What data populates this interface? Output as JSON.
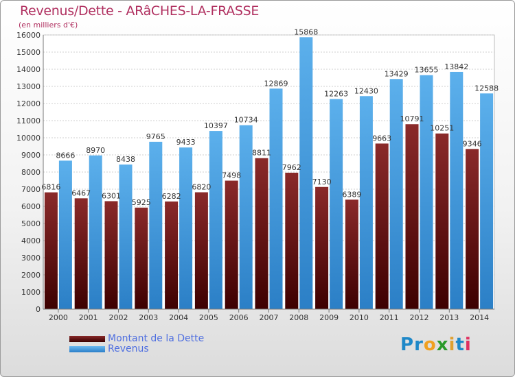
{
  "colors": {
    "dette": "#7a2222",
    "revenus": "#4fa3e6",
    "title": "#b03060",
    "legend_text": "#4f6fe0"
  },
  "logo": {
    "text": "Proxiti",
    "letters": [
      "P",
      "r",
      "o",
      "x",
      "i",
      "t",
      "i"
    ],
    "colors": [
      "#1e88c8",
      "#1e88c8",
      "#f0a020",
      "#2a9a2a",
      "#e0a030",
      "#1e88c8",
      "#e03060"
    ]
  },
  "chart_data": {
    "type": "bar",
    "title": "Revenus/Dette - ARâCHES-LA-FRASSE",
    "subtitle": "(en milliers d'€)",
    "xlabel": "",
    "ylabel": "",
    "ylim": [
      0,
      16000
    ],
    "yticks": [
      0,
      1000,
      2000,
      3000,
      4000,
      5000,
      6000,
      7000,
      8000,
      9000,
      10000,
      11000,
      12000,
      13000,
      14000,
      15000,
      16000
    ],
    "grid": true,
    "legend_position": "bottom-left",
    "categories": [
      "2000",
      "2001",
      "2002",
      "2003",
      "2004",
      "2005",
      "2006",
      "2007",
      "2008",
      "2009",
      "2010",
      "2011",
      "2012",
      "2013",
      "2014"
    ],
    "series": [
      {
        "name": "Montant de la Dette",
        "values": [
          6816,
          6467,
          6301,
          5925,
          6282,
          6820,
          7498,
          8811,
          7962,
          7130,
          6389,
          9663,
          10791,
          10251,
          9346
        ]
      },
      {
        "name": "Revenus",
        "values": [
          8666,
          8970,
          8438,
          9765,
          9433,
          10397,
          10734,
          12869,
          15868,
          12263,
          12430,
          13429,
          13655,
          13842,
          12588
        ]
      }
    ],
    "data_labels": {
      "Montant de la Dette": [
        "6816",
        "6467",
        "6301",
        "5925",
        "6282",
        "6820",
        "7498",
        "8811",
        "7962",
        "7130",
        "6389",
        "9663",
        "10791",
        "10251",
        "9346"
      ],
      "Revenus": [
        "8666",
        "8970",
        "8438",
        "9765",
        "9433",
        "10397",
        "10734",
        "12869",
        "15868",
        "12263",
        "12430",
        "13429",
        "13655",
        "13842",
        "12588"
      ]
    }
  }
}
